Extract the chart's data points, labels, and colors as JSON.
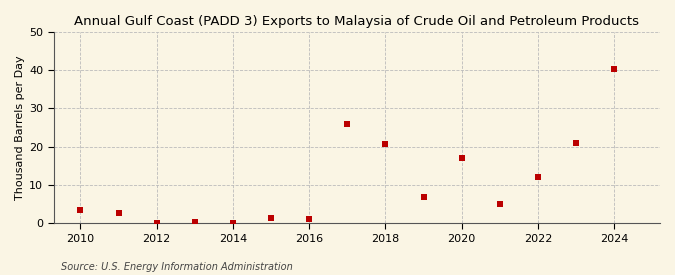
{
  "title": "Annual Gulf Coast (PADD 3) Exports to Malaysia of Crude Oil and Petroleum Products",
  "ylabel": "Thousand Barrels per Day",
  "source": "Source: U.S. Energy Information Administration",
  "background_color": "#faf5e4",
  "data": {
    "2010": 3.5,
    "2011": 2.7,
    "2012": 0.1,
    "2013": 0.4,
    "2014": 0.1,
    "2015": 1.2,
    "2016": 1.1,
    "2017": 26.0,
    "2018": 20.7,
    "2019": 6.8,
    "2020": 17.0,
    "2021": 5.0,
    "2022": 12.0,
    "2023": 21.0,
    "2024": 40.3
  },
  "marker_color": "#bb0000",
  "marker_size": 18,
  "xlim": [
    2009.3,
    2025.2
  ],
  "ylim": [
    0,
    50
  ],
  "yticks": [
    0,
    10,
    20,
    30,
    40,
    50
  ],
  "xticks": [
    2010,
    2012,
    2014,
    2016,
    2018,
    2020,
    2022,
    2024
  ],
  "grid_color": "#bbbbbb",
  "title_fontsize": 9.5,
  "axis_fontsize": 8,
  "source_fontsize": 7.0
}
